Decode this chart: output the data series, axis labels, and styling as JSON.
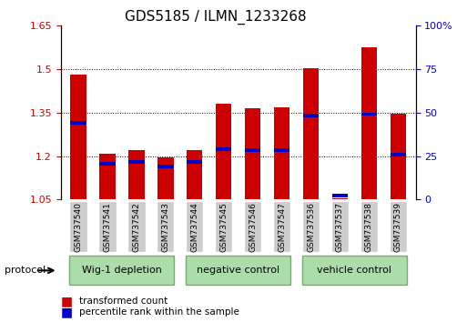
{
  "title": "GDS5185 / ILMN_1233268",
  "samples": [
    "GSM737540",
    "GSM737541",
    "GSM737542",
    "GSM737543",
    "GSM737544",
    "GSM737545",
    "GSM737546",
    "GSM737547",
    "GSM737536",
    "GSM737537",
    "GSM737538",
    "GSM737539"
  ],
  "red_values": [
    1.48,
    1.21,
    1.22,
    1.195,
    1.22,
    1.38,
    1.365,
    1.37,
    1.505,
    1.055,
    1.575,
    1.345
  ],
  "blue_values": [
    1.315,
    1.175,
    1.18,
    1.165,
    1.18,
    1.225,
    1.22,
    1.22,
    1.34,
    1.065,
    1.345,
    1.205
  ],
  "ymin": 1.05,
  "ymax": 1.65,
  "yticks": [
    1.05,
    1.2,
    1.35,
    1.5,
    1.65
  ],
  "ytick_labels": [
    "1.05",
    "1.2",
    "1.35",
    "1.5",
    "1.65"
  ],
  "y2ticks": [
    0,
    25,
    50,
    75,
    100
  ],
  "y2tick_labels": [
    "0",
    "25",
    "50",
    "75",
    "100%"
  ],
  "groups": [
    {
      "label": "Wig-1 depletion",
      "start": 0,
      "end": 3
    },
    {
      "label": "negative control",
      "start": 4,
      "end": 7
    },
    {
      "label": "vehicle control",
      "start": 8,
      "end": 11
    }
  ],
  "protocol_label": "protocol",
  "bar_color": "#cc0000",
  "blue_color": "#0000cc",
  "group_bg": "#aaddaa",
  "sample_bg": "#cccccc",
  "bar_width": 0.55,
  "grid_color": "#000000",
  "title_fontsize": 11,
  "tick_fontsize": 8,
  "label_fontsize": 8
}
